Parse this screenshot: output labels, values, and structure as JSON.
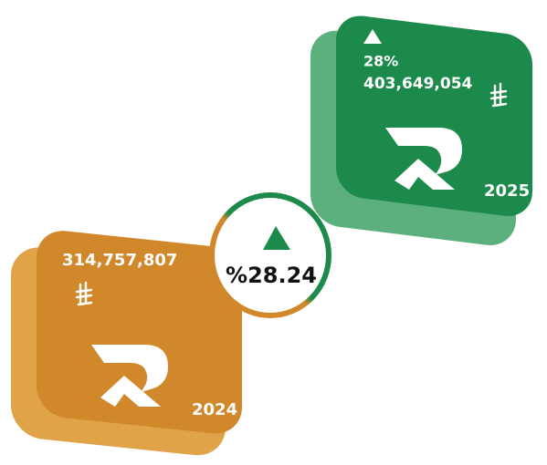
{
  "cards": [
    {
      "change": "28%",
      "value": "403,649,054",
      "year": "2025"
    },
    {
      "value": "314,757,807",
      "year": "2024"
    }
  ],
  "growth": {
    "label": "%28.24"
  }
}
